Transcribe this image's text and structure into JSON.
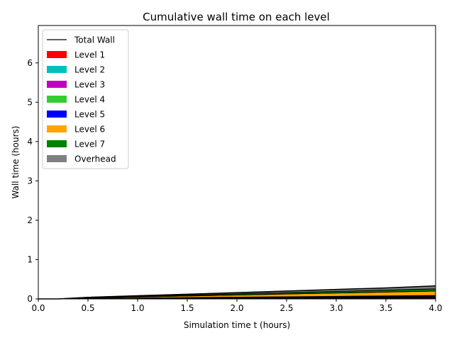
{
  "chart_data": {
    "type": "area",
    "title": "Cumulative wall time on each level",
    "xlabel": "Simulation time t (hours)",
    "ylabel": "Wall time (hours)",
    "xlim": [
      0,
      4
    ],
    "ylim": [
      0,
      6.95
    ],
    "xticks": [
      0.0,
      0.5,
      1.0,
      1.5,
      2.0,
      2.5,
      3.0,
      3.5,
      4.0
    ],
    "xtick_labels": [
      "0.0",
      "0.5",
      "1.0",
      "1.5",
      "2.0",
      "2.5",
      "3.0",
      "3.5",
      "4.0"
    ],
    "yticks": [
      0,
      1,
      2,
      3,
      4,
      5,
      6
    ],
    "ytick_labels": [
      "0",
      "1",
      "2",
      "3",
      "4",
      "5",
      "6"
    ],
    "grid": false,
    "legend_placement": "top-left",
    "x": [
      0.0,
      0.2,
      0.5,
      1.0,
      1.5,
      2.0,
      2.5,
      3.0,
      3.5,
      4.0
    ],
    "total_wall": {
      "name": "Total Wall",
      "color": "#000000",
      "values": [
        0.0,
        0.0,
        0.04,
        0.08,
        0.12,
        0.16,
        0.2,
        0.24,
        0.28,
        0.33
      ]
    },
    "series": [
      {
        "name": "Level 1",
        "color": "#ff0000",
        "values": [
          0.0,
          0.0,
          0.003,
          0.006,
          0.009,
          0.012,
          0.015,
          0.018,
          0.021,
          0.024
        ]
      },
      {
        "name": "Level 2",
        "color": "#00bfbf",
        "values": [
          0.0,
          0.0,
          0.002,
          0.004,
          0.006,
          0.008,
          0.01,
          0.012,
          0.014,
          0.016
        ]
      },
      {
        "name": "Level 3",
        "color": "#bf00bf",
        "values": [
          0.0,
          0.0,
          0.002,
          0.004,
          0.006,
          0.008,
          0.01,
          0.012,
          0.014,
          0.016
        ]
      },
      {
        "name": "Level 4",
        "color": "#33cc33",
        "values": [
          0.0,
          0.0,
          0.002,
          0.004,
          0.006,
          0.008,
          0.01,
          0.012,
          0.014,
          0.016
        ]
      },
      {
        "name": "Level 5",
        "color": "#0000ff",
        "values": [
          0.0,
          0.0,
          0.002,
          0.004,
          0.006,
          0.008,
          0.01,
          0.012,
          0.014,
          0.016
        ]
      },
      {
        "name": "Level 6",
        "color": "#ffa500",
        "values": [
          0.0,
          0.0,
          0.014,
          0.028,
          0.042,
          0.056,
          0.07,
          0.084,
          0.098,
          0.112
        ]
      },
      {
        "name": "Level 7",
        "color": "#008000",
        "values": [
          0.0,
          0.0,
          0.007,
          0.014,
          0.021,
          0.028,
          0.035,
          0.042,
          0.049,
          0.056
        ]
      },
      {
        "name": "Overhead",
        "color": "#808080",
        "values": [
          0.0,
          0.0,
          0.008,
          0.016,
          0.024,
          0.032,
          0.04,
          0.048,
          0.056,
          0.074
        ]
      }
    ]
  }
}
